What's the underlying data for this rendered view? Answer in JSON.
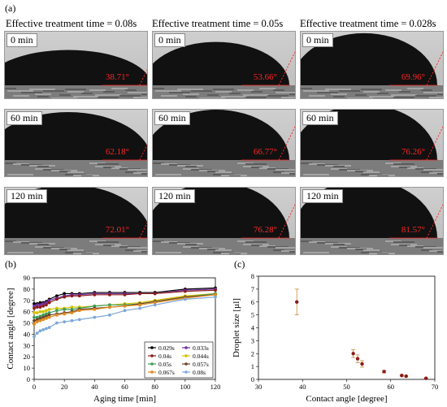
{
  "panel_a": {
    "letter": "(a)",
    "columns": [
      {
        "title": "Effective treatment time = 0.08s",
        "images": [
          {
            "time": "0 min",
            "angle": "38.71°"
          },
          {
            "time": "60 min",
            "angle": "62.18°"
          },
          {
            "time": "120 min",
            "angle": "72.01°"
          }
        ]
      },
      {
        "title": "Effective treatment time = 0.05s",
        "images": [
          {
            "time": "0 min",
            "angle": "53.66°"
          },
          {
            "time": "60 min",
            "angle": "66.77°"
          },
          {
            "time": "120 min",
            "angle": "76.28°"
          }
        ]
      },
      {
        "title": "Effective treatment time = 0.028s",
        "images": [
          {
            "time": "0 min",
            "angle": "69.96°"
          },
          {
            "time": "60 min",
            "angle": "76.26°"
          },
          {
            "time": "120 min",
            "angle": "81.57°"
          }
        ]
      }
    ]
  },
  "chart_data": [
    {
      "type": "line",
      "panel": "(b)",
      "xlabel": "Aging time [min]",
      "ylabel": "Contact angle [degree]",
      "xlim": [
        0,
        120
      ],
      "ylim": [
        0,
        90
      ],
      "xticks": [
        0,
        20,
        40,
        60,
        80,
        100,
        120
      ],
      "yticks": [
        0,
        10,
        20,
        30,
        40,
        50,
        60,
        70,
        80,
        90
      ],
      "grid": false,
      "legend_position": "bottom-right",
      "x": [
        0,
        2,
        4,
        6,
        8,
        10,
        15,
        20,
        25,
        30,
        40,
        50,
        60,
        70,
        80,
        100,
        120
      ],
      "series": [
        {
          "name": "0.029s",
          "color": "#000000",
          "values": [
            67,
            67,
            68,
            68,
            69,
            71,
            74,
            76,
            76,
            76,
            77,
            77,
            77,
            77,
            77,
            80,
            81
          ]
        },
        {
          "name": "0.033s",
          "color": "#7030a0",
          "values": [
            65,
            66,
            66,
            67,
            68,
            70,
            72,
            74,
            75,
            75,
            76,
            76,
            76,
            76,
            76,
            79,
            80
          ]
        },
        {
          "name": "0.04s",
          "color": "#8b1a1a",
          "values": [
            63,
            64,
            64,
            65,
            66,
            68,
            71,
            73,
            74,
            74,
            75,
            75,
            75,
            76,
            76,
            78,
            79
          ]
        },
        {
          "name": "0.044s",
          "color": "#d4c000",
          "values": [
            59,
            59,
            60,
            60,
            61,
            62,
            63,
            63,
            64,
            64,
            65,
            66,
            67,
            68,
            70,
            74,
            76
          ]
        },
        {
          "name": "0.05s",
          "color": "#3c9e5a",
          "values": [
            55,
            55,
            56,
            57,
            58,
            59,
            61,
            62,
            62,
            63,
            65,
            66,
            66,
            67,
            69,
            73,
            76
          ]
        },
        {
          "name": "0.057s",
          "color": "#6b4226",
          "values": [
            52,
            53,
            54,
            55,
            56,
            57,
            58,
            59,
            60,
            62,
            63,
            64,
            65,
            67,
            69,
            73,
            75
          ]
        },
        {
          "name": "0.067s",
          "color": "#e08a1e",
          "values": [
            49,
            51,
            52,
            53,
            54,
            55,
            57,
            58,
            59,
            61,
            62,
            64,
            65,
            66,
            68,
            72,
            75
          ]
        },
        {
          "name": "0.08s",
          "color": "#7da7d9",
          "values": [
            38,
            41,
            43,
            44,
            45,
            46,
            50,
            51,
            52,
            53,
            55,
            57,
            61,
            63,
            66,
            71,
            73
          ]
        }
      ]
    },
    {
      "type": "scatter",
      "panel": "(c)",
      "xlabel": "Contact angle [degree]",
      "ylabel": "Droplet size [µl]",
      "xlim": [
        30,
        70
      ],
      "ylim": [
        0,
        8
      ],
      "xticks": [
        30,
        40,
        50,
        60,
        70
      ],
      "yticks": [
        0,
        1,
        2,
        3,
        4,
        5,
        6,
        7,
        8
      ],
      "grid": false,
      "color": "#8b1a1a",
      "points": [
        {
          "x": 38.7,
          "y": 6.0,
          "err": 1.0
        },
        {
          "x": 51.5,
          "y": 2.0,
          "err": 0.3
        },
        {
          "x": 52.5,
          "y": 1.6,
          "err": 0.3
        },
        {
          "x": 53.5,
          "y": 1.2,
          "err": 0.25
        },
        {
          "x": 58.5,
          "y": 0.6,
          "err": 0.1
        },
        {
          "x": 62.5,
          "y": 0.3,
          "err": 0.05
        },
        {
          "x": 63.5,
          "y": 0.25,
          "err": 0.05
        },
        {
          "x": 68.0,
          "y": 0.08,
          "err": 0.02
        }
      ]
    }
  ]
}
